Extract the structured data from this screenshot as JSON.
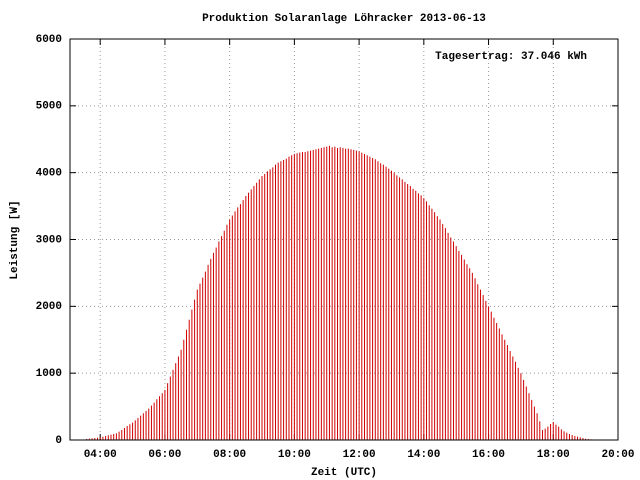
{
  "chart_data": {
    "type": "impulse",
    "title": "Produktion Solaranlage Löhracker 2013-06-13",
    "xlabel": "Zeit (UTC)",
    "ylabel": "Leistung [W]",
    "annotation": "Tagesertrag: 37.046 kWh",
    "color": "#d00000",
    "grid": true,
    "xlim": [
      184,
      1200
    ],
    "ylim": [
      0,
      6000
    ],
    "yticks": [
      0,
      1000,
      2000,
      3000,
      4000,
      5000,
      6000
    ],
    "xticks": [
      {
        "value": 240,
        "label": "04:00"
      },
      {
        "value": 360,
        "label": "06:00"
      },
      {
        "value": 480,
        "label": "08:00"
      },
      {
        "value": 600,
        "label": "10:00"
      },
      {
        "value": 720,
        "label": "12:00"
      },
      {
        "value": 840,
        "label": "14:00"
      },
      {
        "value": 960,
        "label": "16:00"
      },
      {
        "value": 1080,
        "label": "18:00"
      },
      {
        "value": 1200,
        "label": "20:00"
      }
    ],
    "x": [
      215,
      220,
      225,
      230,
      235,
      240,
      245,
      250,
      255,
      260,
      265,
      270,
      275,
      280,
      285,
      290,
      295,
      300,
      305,
      310,
      315,
      320,
      325,
      330,
      335,
      340,
      345,
      350,
      355,
      360,
      365,
      370,
      375,
      380,
      385,
      390,
      395,
      400,
      405,
      410,
      415,
      420,
      425,
      430,
      435,
      440,
      445,
      450,
      455,
      460,
      465,
      470,
      475,
      480,
      485,
      490,
      495,
      500,
      505,
      510,
      515,
      520,
      525,
      530,
      535,
      540,
      545,
      550,
      555,
      560,
      565,
      570,
      575,
      580,
      585,
      590,
      595,
      600,
      605,
      610,
      615,
      620,
      625,
      630,
      635,
      640,
      645,
      650,
      655,
      660,
      665,
      670,
      675,
      680,
      685,
      690,
      695,
      700,
      705,
      710,
      715,
      720,
      725,
      730,
      735,
      740,
      745,
      750,
      755,
      760,
      765,
      770,
      775,
      780,
      785,
      790,
      795,
      800,
      805,
      810,
      815,
      820,
      825,
      830,
      835,
      840,
      845,
      850,
      855,
      860,
      865,
      870,
      875,
      880,
      885,
      890,
      895,
      900,
      905,
      910,
      915,
      920,
      925,
      930,
      935,
      940,
      945,
      950,
      955,
      960,
      965,
      970,
      975,
      980,
      985,
      990,
      995,
      1000,
      1005,
      1010,
      1015,
      1020,
      1025,
      1030,
      1035,
      1040,
      1045,
      1050,
      1055,
      1060,
      1065,
      1070,
      1075,
      1080,
      1085,
      1090,
      1095,
      1100,
      1105,
      1110,
      1115,
      1120,
      1125,
      1130,
      1135,
      1140,
      1145,
      1150
    ],
    "values": [
      15,
      20,
      25,
      30,
      35,
      40,
      50,
      60,
      70,
      80,
      90,
      100,
      125,
      150,
      180,
      210,
      235,
      260,
      295,
      330,
      365,
      400,
      435,
      470,
      515,
      560,
      610,
      655,
      700,
      750,
      850,
      950,
      1050,
      1150,
      1250,
      1350,
      1500,
      1650,
      1800,
      1950,
      2100,
      2250,
      2340,
      2430,
      2520,
      2620,
      2710,
      2800,
      2880,
      2970,
      3050,
      3130,
      3220,
      3300,
      3360,
      3420,
      3480,
      3530,
      3590,
      3650,
      3700,
      3750,
      3800,
      3850,
      3900,
      3950,
      3980,
      4020,
      4050,
      4080,
      4120,
      4150,
      4170,
      4190,
      4210,
      4240,
      4260,
      4280,
      4290,
      4300,
      4310,
      4310,
      4320,
      4330,
      4340,
      4350,
      4360,
      4370,
      4380,
      4390,
      4400,
      4380,
      4390,
      4370,
      4380,
      4370,
      4360,
      4360,
      4350,
      4340,
      4330,
      4320,
      4300,
      4280,
      4260,
      4240,
      4220,
      4200,
      4170,
      4140,
      4120,
      4090,
      4060,
      4030,
      4000,
      3960,
      3930,
      3900,
      3860,
      3830,
      3800,
      3760,
      3730,
      3690,
      3660,
      3620,
      3570,
      3510,
      3460,
      3410,
      3350,
      3300,
      3230,
      3170,
      3100,
      3030,
      2970,
      2900,
      2830,
      2770,
      2700,
      2630,
      2570,
      2500,
      2420,
      2330,
      2250,
      2170,
      2080,
      2000,
      1920,
      1830,
      1750,
      1670,
      1580,
      1500,
      1420,
      1330,
      1250,
      1170,
      1080,
      1000,
      900,
      800,
      700,
      600,
      500,
      400,
      280,
      150,
      170,
      200,
      240,
      270,
      230,
      200,
      160,
      130,
      110,
      90,
      75,
      60,
      50,
      40,
      30,
      20,
      15,
      10
    ]
  }
}
